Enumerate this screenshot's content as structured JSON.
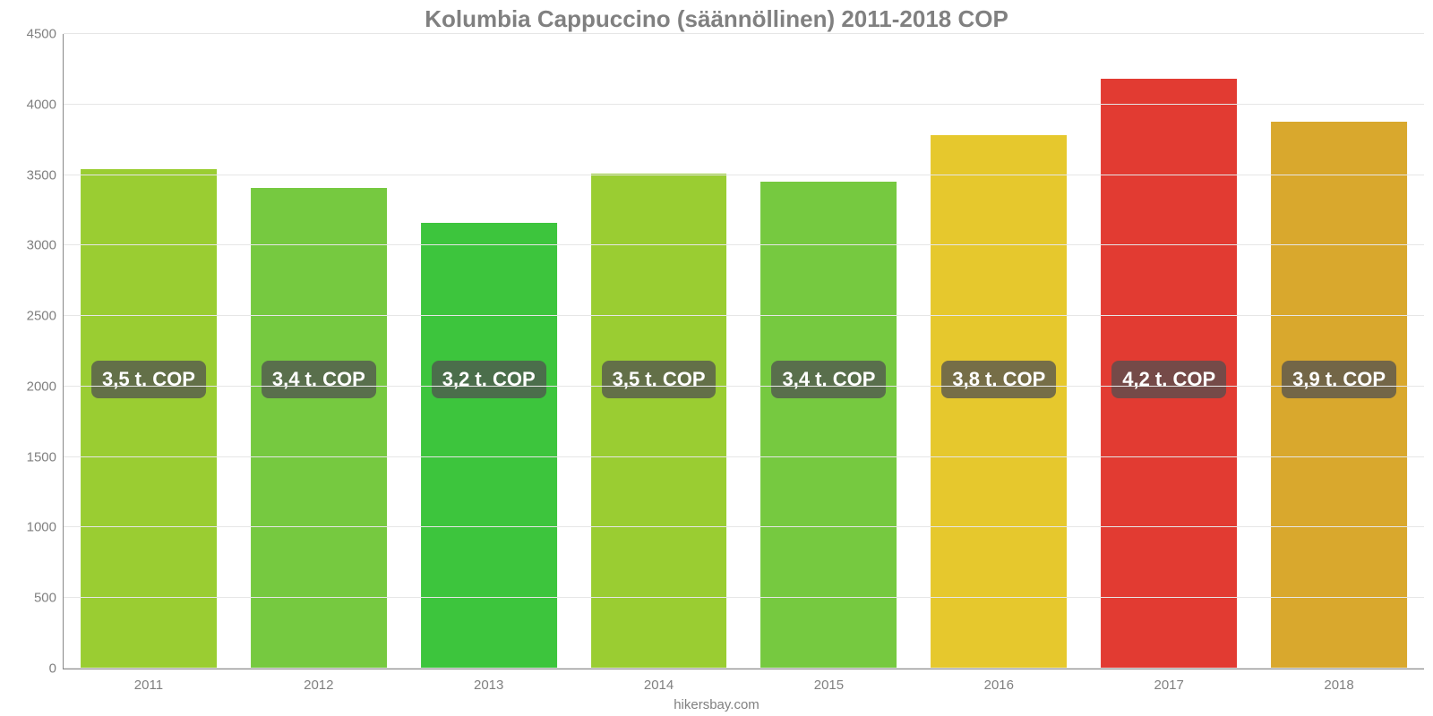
{
  "chart": {
    "type": "bar",
    "title": "Kolumbia Cappuccino (säännöllinen) 2011-2018 COP",
    "title_color": "#808080",
    "title_fontsize": 26,
    "background_color": "#ffffff",
    "grid_color": "#e6e6e6",
    "axis_color": "#888888",
    "tick_fontsize": 15,
    "tick_color": "#808080",
    "ymin": 0,
    "ymax": 4500,
    "yticks": [
      0,
      500,
      1000,
      1500,
      2000,
      2500,
      3000,
      3500,
      4000,
      4500
    ],
    "bar_width_pct": 80,
    "bar_label_fontsize": 22,
    "bar_label_bg": "rgba(80,80,80,0.75)",
    "bar_label_color": "#ffffff",
    "bar_label_y_value": 2050,
    "categories": [
      "2011",
      "2012",
      "2013",
      "2014",
      "2015",
      "2016",
      "2017",
      "2018"
    ],
    "values": [
      3540,
      3410,
      3160,
      3510,
      3450,
      3780,
      4180,
      3880
    ],
    "bar_labels": [
      "3,5 t. COP",
      "3,4 t. COP",
      "3,2 t. COP",
      "3,5 t. COP",
      "3,4 t. COP",
      "3,8 t. COP",
      "4,2 t. COP",
      "3,9 t. COP"
    ],
    "bar_colors": [
      "#9acd32",
      "#76c940",
      "#3dc53d",
      "#9acd32",
      "#76c940",
      "#e6c82d",
      "#e23b32",
      "#d9a82d"
    ],
    "footer_text": "hikersbay.com",
    "footer_color": "#808080",
    "footer_fontsize": 15
  }
}
